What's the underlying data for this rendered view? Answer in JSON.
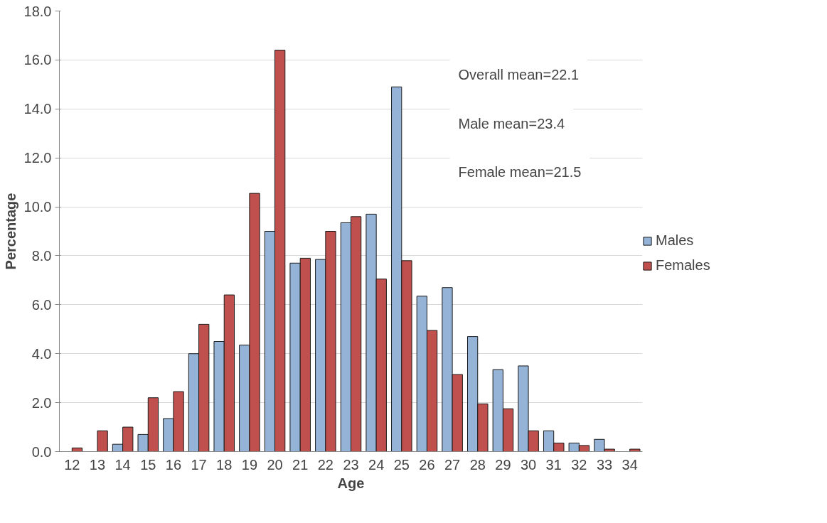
{
  "chart_data": {
    "type": "bar",
    "xlabel": "Age",
    "ylabel": "Percentage",
    "categories": [
      "12",
      "13",
      "14",
      "15",
      "16",
      "17",
      "18",
      "19",
      "20",
      "21",
      "22",
      "23",
      "24",
      "25",
      "26",
      "27",
      "28",
      "29",
      "30",
      "31",
      "32",
      "33",
      "34"
    ],
    "series": [
      {
        "name": "Males",
        "color": "#95b3d7",
        "values": [
          null,
          null,
          0.3,
          0.7,
          1.35,
          4.0,
          4.5,
          4.35,
          9.0,
          7.7,
          7.85,
          9.35,
          9.7,
          14.9,
          6.35,
          6.7,
          4.7,
          3.35,
          3.5,
          0.85,
          0.35,
          0.5,
          null
        ]
      },
      {
        "name": "Females",
        "color": "#c0504d",
        "values": [
          0.15,
          0.85,
          1.0,
          2.2,
          2.45,
          5.2,
          6.4,
          10.55,
          16.4,
          7.9,
          9.0,
          9.6,
          7.05,
          7.8,
          4.95,
          3.15,
          1.95,
          1.75,
          0.85,
          0.35,
          0.25,
          0.1,
          0.1
        ]
      }
    ],
    "ylim": [
      0,
      18
    ],
    "yticks": [
      {
        "value": 0,
        "label": "0.0"
      },
      {
        "value": 2,
        "label": "2.0"
      },
      {
        "value": 4,
        "label": "4.0"
      },
      {
        "value": 6,
        "label": "6.0"
      },
      {
        "value": 8,
        "label": "8.0"
      },
      {
        "value": 10,
        "label": "10.0"
      },
      {
        "value": 12,
        "label": "12.0"
      },
      {
        "value": 14,
        "label": "14.0"
      },
      {
        "value": 16,
        "label": "16.0"
      },
      {
        "value": 18,
        "label": "18.0"
      }
    ],
    "grid": "y",
    "legend": "right",
    "annotations": [
      "Overall mean=22.1",
      "Male mean=23.4",
      "Female mean=21.5"
    ]
  }
}
